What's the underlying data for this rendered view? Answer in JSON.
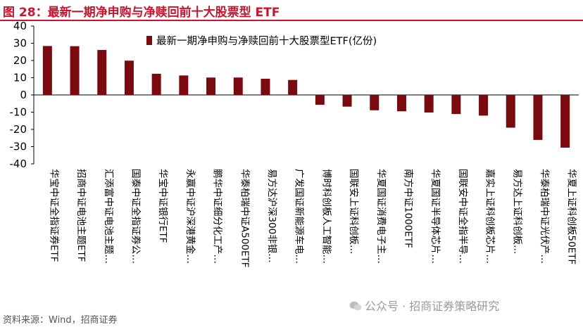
{
  "title": "图 28：最新一期净申购与净赎回前十大股票型 ETF",
  "source": "资料来源：Wind，招商证券",
  "watermark": "公众号 · 招商证券策略研究",
  "colors": {
    "title": "#c8152d",
    "bar": "#7a0a10",
    "axis": "#000000"
  },
  "chart_data": {
    "type": "bar",
    "legend": "最新一期净申购与净赎回前十大股票型ETF(亿份)",
    "legend_position": "top-right",
    "ylim": [
      -40,
      40
    ],
    "yticks": [
      40,
      30,
      20,
      10,
      0,
      -10,
      -20,
      -30,
      -40
    ],
    "grid": false,
    "categories": [
      "华宝中证全指证券ETF",
      "招商中证电池主题ETF",
      "汇添富中证电池主题…",
      "国泰中证全指证券公…",
      "华宝中证银行ETF",
      "永赢中证沪深港黄金…",
      "鹏华中证细分化工产…",
      "华泰柏瑞中证A500ETF",
      "易方达沪深300非银…",
      "广发国证新能源车电…",
      "博时科创板人工智能…",
      "国联安上证科创板…",
      "华夏国证消费电子主…",
      "南方中证1000ETF",
      "华夏国证半导体芯片…",
      "国联安中证全指半导…",
      "嘉实上证科创板芯片…",
      "易方达上证科创板…",
      "华泰柏瑞中证光伏产…",
      "华夏上证科创板50ETF"
    ],
    "values": [
      28.4,
      28.3,
      26.1,
      19.9,
      12.3,
      11.3,
      10.1,
      10.1,
      9.4,
      8.7,
      -5.7,
      -6.8,
      -8.9,
      -9.5,
      -10.2,
      -11.1,
      -12.0,
      -19.0,
      -26.1,
      -30.6
    ]
  }
}
